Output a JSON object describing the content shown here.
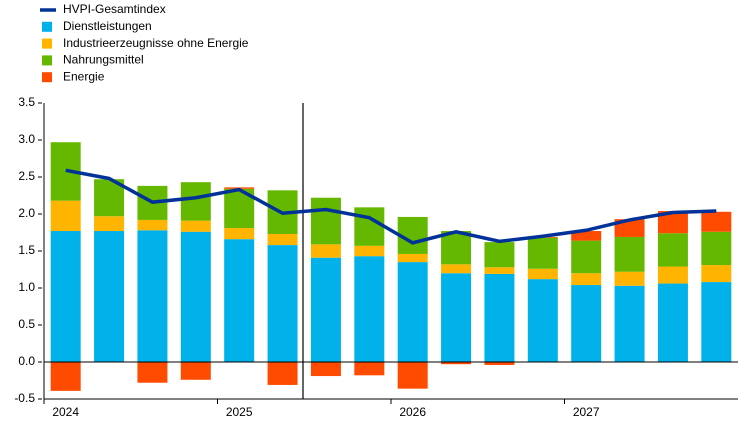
{
  "chart_data": {
    "type": "bar",
    "stacked": true,
    "categories": [
      "2024",
      null,
      null,
      null,
      "2025",
      null,
      null,
      null,
      "2026",
      null,
      null,
      null,
      "2027",
      null,
      null,
      null
    ],
    "series": [
      {
        "name": "HVPI-Gesamtindex",
        "type": "line",
        "color": "#003299",
        "values": [
          2.59,
          2.48,
          2.16,
          2.22,
          2.33,
          2.01,
          2.06,
          1.95,
          1.61,
          1.76,
          1.63,
          1.7,
          1.78,
          1.92,
          2.02,
          2.04
        ]
      },
      {
        "name": "Dienstleistungen",
        "color": "#00b1ea",
        "values": [
          1.77,
          1.77,
          1.78,
          1.76,
          1.66,
          1.58,
          1.41,
          1.43,
          1.35,
          1.2,
          1.19,
          1.12,
          1.04,
          1.03,
          1.06,
          1.08
        ]
      },
      {
        "name": "Industrieerzeugnisse ohne Energie",
        "color": "#ffb400",
        "values": [
          0.41,
          0.2,
          0.14,
          0.15,
          0.15,
          0.15,
          0.18,
          0.14,
          0.11,
          0.12,
          0.09,
          0.14,
          0.16,
          0.19,
          0.23,
          0.23
        ]
      },
      {
        "name": "Nahrungsmittel",
        "color": "#65b800",
        "values": [
          0.79,
          0.5,
          0.46,
          0.52,
          0.53,
          0.59,
          0.63,
          0.52,
          0.5,
          0.45,
          0.34,
          0.42,
          0.44,
          0.47,
          0.45,
          0.45
        ]
      },
      {
        "name": "Energie",
        "color": "#ff4b00",
        "values": [
          -0.39,
          0.0,
          -0.28,
          -0.24,
          0.02,
          -0.31,
          -0.19,
          -0.18,
          -0.36,
          -0.03,
          -0.04,
          0.01,
          0.13,
          0.24,
          0.3,
          0.27
        ]
      }
    ],
    "ylim": [
      -0.5,
      3.5
    ],
    "yticks": [
      -0.5,
      {
        "value": 0,
        "label": "0.0"
      },
      0.5,
      {
        "value": 1,
        "label": "1.0"
      },
      1.5,
      {
        "value": 2,
        "label": "2.0"
      },
      2.5,
      {
        "value": 3,
        "label": "3.0"
      },
      3.5
    ],
    "grid": false,
    "legend": "top-left"
  }
}
